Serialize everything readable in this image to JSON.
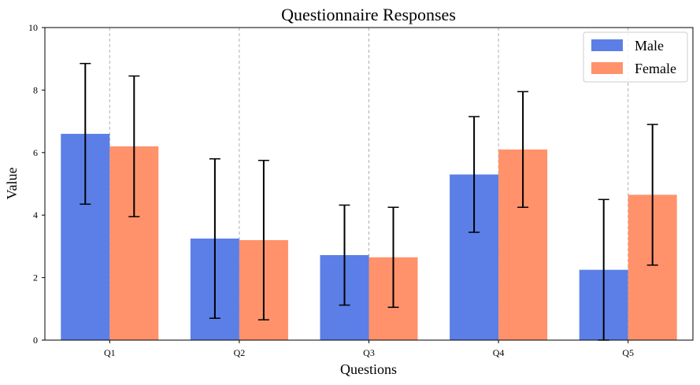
{
  "chart_data": {
    "type": "bar",
    "title": "Questionnaire Responses",
    "xlabel": "Questions",
    "ylabel": "Value",
    "ylim": [
      0,
      10
    ],
    "yticks": [
      0,
      2,
      4,
      6,
      8,
      10
    ],
    "categories": [
      "Q1",
      "Q2",
      "Q3",
      "Q4",
      "Q5"
    ],
    "grid": "x-dashed",
    "legend_position": "top-right",
    "series": [
      {
        "name": "Male",
        "color": "#5b7fe6",
        "values": [
          6.6,
          3.25,
          2.72,
          5.3,
          2.25
        ],
        "error": [
          2.25,
          2.55,
          1.6,
          1.85,
          2.25
        ]
      },
      {
        "name": "Female",
        "color": "#ff926b",
        "values": [
          6.2,
          3.2,
          2.65,
          6.1,
          4.65
        ],
        "error": [
          2.25,
          2.55,
          1.6,
          1.85,
          2.25
        ]
      }
    ]
  }
}
